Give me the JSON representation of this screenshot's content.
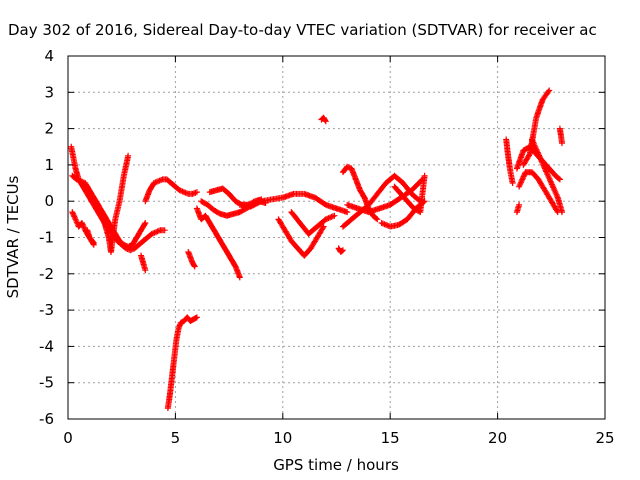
{
  "chart_data": {
    "type": "scatter",
    "title": "Day 302 of 2016, Sidereal Day-to-day VTEC variation (SDTVAR) for receiver ac",
    "xlabel": "GPS time / hours",
    "ylabel": "SDTVAR / TECUs",
    "xlim": [
      0,
      25
    ],
    "ylim": [
      -6,
      4
    ],
    "xticks": [
      "0",
      "5",
      "10",
      "15",
      "20",
      "25"
    ],
    "yticks": [
      "-6",
      "-5",
      "-4",
      "-3",
      "-2",
      "-1",
      "0",
      "1",
      "2",
      "3",
      "4"
    ],
    "grid": true,
    "marker": "+",
    "series": [
      {
        "name": "SDTVAR",
        "color": "#ff0000",
        "segments": [
          {
            "x": [
              0.15,
              0.25,
              0.35,
              0.5,
              0.7,
              0.9,
              1.1,
              1.3,
              1.5,
              1.7,
              1.9,
              2.1,
              2.3,
              2.5,
              2.7,
              2.9,
              3.1,
              3.3,
              3.5,
              3.7,
              3.9,
              4.1,
              4.3,
              4.5
            ],
            "y": [
              1.5,
              1.2,
              0.9,
              0.6,
              0.4,
              0.2,
              0.0,
              -0.2,
              -0.4,
              -0.6,
              -0.8,
              -0.9,
              -1.1,
              -1.2,
              -1.3,
              -1.35,
              -1.3,
              -1.2,
              -1.1,
              -1.0,
              -0.9,
              -0.85,
              -0.8,
              -0.8
            ]
          },
          {
            "x": [
              0.2,
              0.4,
              0.6,
              0.8,
              1.0,
              1.2,
              1.4,
              1.6,
              1.8,
              2.0,
              2.2,
              2.4,
              2.6,
              2.8,
              3.0,
              3.2,
              3.4,
              3.6
            ],
            "y": [
              0.7,
              0.6,
              0.55,
              0.5,
              0.3,
              0.1,
              -0.1,
              -0.3,
              -0.5,
              -0.7,
              -0.9,
              -1.1,
              -1.2,
              -1.25,
              -1.2,
              -1.0,
              -0.8,
              -0.6
            ]
          },
          {
            "x": [
              0.2,
              0.35,
              0.5,
              0.65,
              0.8,
              1.0,
              1.2
            ],
            "y": [
              -0.3,
              -0.5,
              -0.7,
              -0.6,
              -0.8,
              -1.0,
              -1.2
            ]
          },
          {
            "x": [
              0.9,
              1.0,
              1.2
            ],
            "y": [
              -0.8,
              -1.0,
              -1.15
            ]
          },
          {
            "x": [
              1.6,
              1.75,
              1.9,
              2.0,
              2.2,
              2.4,
              2.6,
              2.8
            ],
            "y": [
              -0.4,
              -0.7,
              -1.0,
              -1.4,
              -0.5,
              0.0,
              0.7,
              1.25
            ]
          },
          {
            "x": [
              3.6,
              3.8,
              4.0,
              4.2,
              4.4,
              4.6,
              4.8,
              5.0,
              5.2,
              5.4,
              5.6,
              5.8,
              6.0
            ],
            "y": [
              0.0,
              0.3,
              0.5,
              0.55,
              0.6,
              0.6,
              0.5,
              0.4,
              0.3,
              0.25,
              0.2,
              0.2,
              0.25
            ]
          },
          {
            "x": [
              3.4,
              3.5,
              3.6
            ],
            "y": [
              -1.5,
              -1.7,
              -1.9
            ]
          },
          {
            "x": [
              4.65,
              4.75,
              4.85,
              4.95,
              5.05,
              5.15,
              5.25,
              5.4,
              5.55,
              5.7,
              5.85,
              6.0
            ],
            "y": [
              -5.7,
              -5.3,
              -4.8,
              -4.3,
              -3.8,
              -3.5,
              -3.35,
              -3.3,
              -3.2,
              -3.3,
              -3.25,
              -3.2
            ]
          },
          {
            "x": [
              5.6,
              5.7,
              5.8,
              5.9
            ],
            "y": [
              -1.4,
              -1.55,
              -1.7,
              -1.8
            ]
          },
          {
            "x": [
              6.0,
              6.2,
              6.4,
              6.6,
              6.8,
              7.0,
              7.2,
              7.4,
              7.6,
              7.8,
              8.0
            ],
            "y": [
              -0.2,
              -0.5,
              -0.4,
              -0.6,
              -0.8,
              -1.0,
              -1.2,
              -1.4,
              -1.6,
              -1.8,
              -2.1
            ]
          },
          {
            "x": [
              6.2,
              6.5,
              6.8,
              7.1,
              7.4,
              7.7,
              8.0,
              8.3,
              8.6,
              8.9,
              9.2
            ],
            "y": [
              0.0,
              -0.1,
              -0.25,
              -0.35,
              -0.4,
              -0.35,
              -0.3,
              -0.2,
              -0.1,
              0.0,
              -0.05
            ]
          },
          {
            "x": [
              6.6,
              6.9,
              7.2,
              7.5,
              7.8,
              8.1,
              8.4,
              8.7,
              9.0
            ],
            "y": [
              0.25,
              0.3,
              0.35,
              0.2,
              0.0,
              -0.1,
              -0.1,
              0.0,
              0.05
            ]
          },
          {
            "x": [
              8.0,
              8.5,
              9.0,
              9.5,
              10.0,
              10.5,
              11.0,
              11.5,
              12.0,
              12.5,
              13.0
            ],
            "y": [
              -0.1,
              -0.15,
              0.0,
              0.05,
              0.1,
              0.2,
              0.2,
              0.1,
              -0.1,
              -0.2,
              -0.3
            ]
          },
          {
            "x": [
              9.8,
              10.1,
              10.4,
              10.7,
              11.0,
              11.3,
              11.6,
              11.9
            ],
            "y": [
              -0.5,
              -0.8,
              -1.1,
              -1.3,
              -1.5,
              -1.3,
              -1.0,
              -0.7
            ]
          },
          {
            "x": [
              10.4,
              10.8,
              11.2,
              11.6,
              12.0,
              12.4
            ],
            "y": [
              -0.3,
              -0.6,
              -0.9,
              -0.7,
              -0.5,
              -0.4
            ]
          },
          {
            "x": [
              11.8,
              11.9,
              12.0
            ],
            "y": [
              2.25,
              2.3,
              2.2
            ]
          },
          {
            "x": [
              12.6,
              12.7,
              12.8
            ],
            "y": [
              -1.3,
              -1.4,
              -1.35
            ]
          },
          {
            "x": [
              12.8,
              13.0,
              13.2,
              13.4,
              13.6,
              13.8,
              14.0,
              14.2,
              14.4
            ],
            "y": [
              0.8,
              0.95,
              0.9,
              0.6,
              0.3,
              0.1,
              -0.2,
              -0.4,
              -0.5
            ]
          },
          {
            "x": [
              12.8,
              13.2,
              13.6,
              14.0,
              14.4,
              14.8,
              15.2,
              15.6,
              16.0,
              16.4
            ],
            "y": [
              -0.7,
              -0.5,
              -0.3,
              -0.1,
              0.2,
              0.5,
              0.7,
              0.5,
              0.2,
              0.0
            ]
          },
          {
            "x": [
              13.0,
              13.5,
              14.0,
              14.5,
              15.0,
              15.5,
              16.0,
              16.5
            ],
            "y": [
              -0.1,
              -0.2,
              -0.3,
              -0.2,
              -0.1,
              0.1,
              0.3,
              0.6
            ]
          },
          {
            "x": [
              14.6,
              15.0,
              15.4,
              15.8,
              16.2,
              16.6
            ],
            "y": [
              -0.6,
              -0.7,
              -0.65,
              -0.5,
              -0.2,
              0.0
            ]
          },
          {
            "x": [
              15.2,
              15.5,
              15.8,
              16.1,
              16.4,
              16.6
            ],
            "y": [
              0.4,
              0.2,
              0.0,
              -0.2,
              -0.3,
              0.7
            ]
          },
          {
            "x": [
              20.4,
              20.5,
              20.6,
              20.7
            ],
            "y": [
              1.7,
              1.2,
              0.8,
              0.5
            ]
          },
          {
            "x": [
              20.9,
              21.2,
              21.5,
              21.8,
              22.1,
              22.4,
              22.7,
              22.9
            ],
            "y": [
              0.9,
              1.4,
              1.5,
              1.3,
              1.1,
              0.9,
              0.7,
              0.6
            ]
          },
          {
            "x": [
              21.0,
              21.3,
              21.6,
              21.9,
              22.2,
              22.5,
              22.8
            ],
            "y": [
              0.4,
              0.8,
              0.8,
              0.6,
              0.3,
              0.0,
              -0.3
            ]
          },
          {
            "x": [
              21.2,
              21.5,
              21.8,
              22.1,
              22.4
            ],
            "y": [
              1.0,
              1.3,
              2.3,
              2.8,
              3.05
            ]
          },
          {
            "x": [
              21.6,
              21.9,
              22.2,
              22.5,
              22.8,
              23.0
            ],
            "y": [
              1.7,
              1.3,
              0.9,
              0.5,
              0.1,
              -0.3
            ]
          },
          {
            "x": [
              20.9,
              21.0
            ],
            "y": [
              -0.3,
              -0.1
            ]
          },
          {
            "x": [
              22.9,
              23.0
            ],
            "y": [
              2.0,
              1.6
            ]
          }
        ]
      }
    ]
  }
}
